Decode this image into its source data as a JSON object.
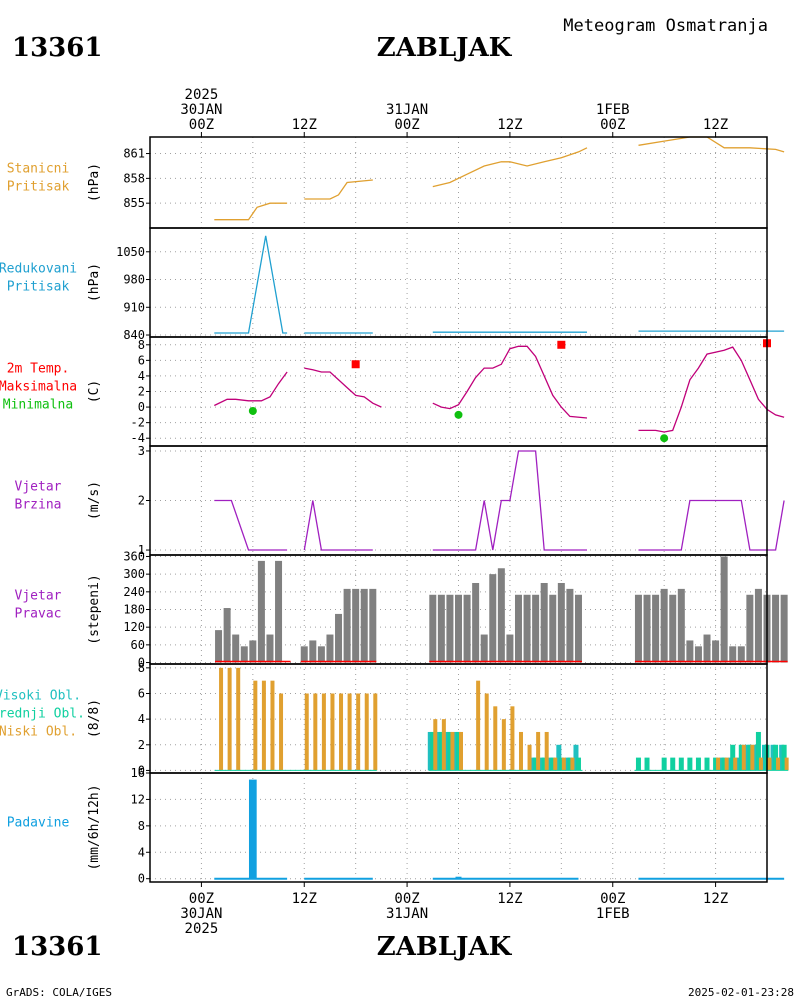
{
  "header": {
    "station_id": "13361",
    "station_name": "ZABLJAK",
    "doc_title": "Meteogram Osmatranja"
  },
  "footer": {
    "station_id": "13361",
    "station_name": "ZABLJAK",
    "credit": "GrADS: COLA/IGES",
    "timestamp": "2025-02-01-23:28"
  },
  "time_axis": {
    "hours_range": [
      -6,
      66
    ],
    "top_labels": [
      {
        "hour": 0,
        "lines": [
          "2025",
          "30JAN",
          "00Z"
        ]
      },
      {
        "hour": 12,
        "lines": [
          "12Z"
        ]
      },
      {
        "hour": 24,
        "lines": [
          "31JAN",
          "00Z"
        ]
      },
      {
        "hour": 36,
        "lines": [
          "12Z"
        ]
      },
      {
        "hour": 48,
        "lines": [
          "1FEB",
          "00Z"
        ]
      },
      {
        "hour": 60,
        "lines": [
          "12Z"
        ]
      }
    ],
    "bottom_labels": [
      {
        "hour": 0,
        "lines": [
          "00Z",
          "30JAN",
          "2025"
        ]
      },
      {
        "hour": 12,
        "lines": [
          "12Z"
        ]
      },
      {
        "hour": 24,
        "lines": [
          "00Z",
          "31JAN"
        ]
      },
      {
        "hour": 36,
        "lines": [
          "12Z"
        ]
      },
      {
        "hour": 48,
        "lines": [
          "00Z",
          "1FEB"
        ]
      },
      {
        "hour": 60,
        "lines": [
          "12Z"
        ]
      }
    ]
  },
  "colors": {
    "pressure": "#e0a030",
    "reduced": "#20a0d0",
    "temp": "#c0007a",
    "tmax": "#ff0000",
    "tmin": "#10c010",
    "wind": "#a020c0",
    "wdir_bar": "#808080",
    "wdir_base": "#ff0000",
    "cloud_high": "#20c0c0",
    "cloud_mid": "#10d0a0",
    "cloud_low": "#e0a030",
    "precip": "#10a0e0",
    "grid": "#a0a0a0"
  },
  "chart_data": [
    {
      "type": "line",
      "panel": "pressure",
      "labels": [
        "Stanicni",
        "Pritisak"
      ],
      "ylabel": "(hPa)",
      "ylim": [
        852,
        863
      ],
      "yticks": [
        855,
        858,
        861
      ],
      "series": [
        {
          "segments": [
            [
              [
                1.5,
                853
              ],
              [
                5.5,
                853
              ],
              [
                6.5,
                854.5
              ],
              [
                8,
                855
              ],
              [
                10,
                855
              ]
            ],
            [
              [
                12,
                855.5
              ],
              [
                15,
                855.5
              ],
              [
                16,
                856
              ],
              [
                17,
                857.5
              ],
              [
                20,
                857.8
              ]
            ],
            [
              [
                27,
                857
              ],
              [
                29,
                857.5
              ],
              [
                31,
                858.5
              ],
              [
                33,
                859.5
              ],
              [
                35,
                860
              ],
              [
                36,
                860
              ],
              [
                38,
                859.5
              ],
              [
                40,
                860
              ],
              [
                42,
                860.5
              ],
              [
                44,
                861.2
              ],
              [
                45,
                861.7
              ]
            ],
            [
              [
                51,
                862
              ],
              [
                54,
                862.5
              ],
              [
                57,
                863
              ],
              [
                59,
                863
              ],
              [
                61,
                861.7
              ],
              [
                64,
                861.7
              ],
              [
                67,
                861.5
              ],
              [
                68,
                861.2
              ]
            ]
          ]
        }
      ]
    },
    {
      "type": "line",
      "panel": "reduced_pressure",
      "labels": [
        "Redukovani",
        "Pritisak"
      ],
      "ylabel": "(hPa)",
      "ylim": [
        835,
        1110
      ],
      "yticks": [
        840,
        910,
        980,
        1050
      ],
      "series": [
        {
          "segments": [
            [
              [
                1.5,
                845
              ],
              [
                5.5,
                845
              ],
              [
                7.5,
                1090
              ],
              [
                9.5,
                845
              ],
              [
                10,
                845
              ]
            ],
            [
              [
                12,
                845
              ],
              [
                20,
                845
              ]
            ],
            [
              [
                27,
                847
              ],
              [
                45,
                847
              ]
            ],
            [
              [
                51,
                850
              ],
              [
                68,
                850
              ]
            ]
          ]
        }
      ]
    },
    {
      "type": "line",
      "panel": "temperature",
      "labels": [
        "2m Temp.",
        "Maksimalna",
        "Minimalna"
      ],
      "ylabel": "(C)",
      "ylim": [
        -5,
        9
      ],
      "yticks": [
        -4,
        -2,
        0,
        2,
        4,
        6,
        8
      ],
      "series": [
        {
          "name": "2m Temp.",
          "segments": [
            [
              [
                1.5,
                0.2
              ],
              [
                3,
                1
              ],
              [
                4,
                1
              ],
              [
                5.5,
                0.8
              ],
              [
                7,
                0.8
              ],
              [
                8,
                1.3
              ],
              [
                9,
                3
              ],
              [
                10,
                4.5
              ]
            ],
            [
              [
                12,
                5
              ],
              [
                13,
                4.8
              ],
              [
                14,
                4.5
              ],
              [
                15,
                4.5
              ],
              [
                17,
                2.5
              ],
              [
                18,
                1.5
              ],
              [
                19,
                1.3
              ],
              [
                20,
                0.5
              ],
              [
                21,
                0
              ]
            ],
            [
              [
                27,
                0.5
              ],
              [
                28,
                0
              ],
              [
                29,
                -0.2
              ],
              [
                30,
                0.3
              ],
              [
                31,
                2
              ],
              [
                32,
                3.8
              ],
              [
                33,
                5
              ],
              [
                34,
                5
              ],
              [
                35,
                5.5
              ],
              [
                36,
                7.5
              ],
              [
                37,
                7.8
              ],
              [
                38,
                7.8
              ],
              [
                39,
                6.5
              ],
              [
                40,
                4
              ],
              [
                41,
                1.5
              ],
              [
                42,
                0
              ],
              [
                43,
                -1.2
              ],
              [
                45,
                -1.4
              ]
            ],
            [
              [
                51,
                -3
              ],
              [
                53,
                -3
              ],
              [
                54,
                -3.2
              ],
              [
                55,
                -3
              ],
              [
                56,
                0
              ],
              [
                57,
                3.5
              ],
              [
                58,
                5
              ],
              [
                59,
                6.8
              ],
              [
                61,
                7.3
              ],
              [
                62,
                7.7
              ],
              [
                63,
                6
              ],
              [
                64,
                3.5
              ],
              [
                65,
                1
              ],
              [
                66,
                -0.3
              ],
              [
                67,
                -1
              ],
              [
                68,
                -1.3
              ]
            ]
          ]
        }
      ],
      "max_points": [
        [
          18,
          5.5
        ],
        [
          42,
          8
        ],
        [
          66,
          8.2
        ]
      ],
      "min_points": [
        [
          6,
          -0.5
        ],
        [
          30,
          -1
        ],
        [
          54,
          -4
        ]
      ]
    },
    {
      "type": "line",
      "panel": "wind_speed",
      "labels": [
        "Vjetar",
        "Brzina"
      ],
      "ylabel": "(m/s)",
      "ylim": [
        0.9,
        3.1
      ],
      "yticks": [
        1,
        2,
        3
      ],
      "series": [
        {
          "segments": [
            [
              [
                1.5,
                2
              ],
              [
                3.5,
                2
              ],
              [
                5.5,
                1
              ],
              [
                10,
                1
              ]
            ],
            [
              [
                12,
                1
              ],
              [
                13,
                2
              ],
              [
                14,
                1
              ],
              [
                20,
                1
              ]
            ],
            [
              [
                27,
                1
              ],
              [
                32,
                1
              ],
              [
                33,
                2
              ],
              [
                34,
                1
              ],
              [
                35,
                2
              ],
              [
                36,
                2
              ],
              [
                37,
                3
              ],
              [
                39,
                3
              ],
              [
                40,
                1
              ],
              [
                45,
                1
              ]
            ],
            [
              [
                51,
                1
              ],
              [
                56,
                1
              ],
              [
                57,
                2
              ],
              [
                63,
                2
              ],
              [
                64,
                1
              ],
              [
                67,
                1
              ],
              [
                68,
                2
              ]
            ]
          ]
        }
      ]
    },
    {
      "type": "bar",
      "panel": "wind_direction",
      "labels": [
        "Vjetar",
        "Pravac"
      ],
      "ylabel": "(stepeni)",
      "ylim": [
        -5,
        365
      ],
      "yticks": [
        0,
        60,
        120,
        180,
        240,
        300,
        360
      ],
      "x": [
        2,
        3,
        4,
        5,
        6,
        7,
        8,
        9,
        12,
        13,
        14,
        15,
        16,
        17,
        18,
        19,
        20,
        27,
        28,
        29,
        30,
        31,
        32,
        33,
        34,
        35,
        36,
        37,
        38,
        39,
        40,
        41,
        42,
        43,
        44,
        51,
        52,
        53,
        54,
        55,
        56,
        57,
        58,
        59,
        60,
        61,
        62,
        63,
        64,
        65,
        66,
        67,
        68
      ],
      "values": [
        110,
        185,
        95,
        55,
        75,
        345,
        95,
        345,
        55,
        75,
        55,
        95,
        165,
        250,
        250,
        250,
        250,
        230,
        230,
        230,
        230,
        230,
        270,
        95,
        300,
        320,
        95,
        230,
        230,
        230,
        270,
        230,
        270,
        250,
        230,
        230,
        230,
        230,
        250,
        230,
        250,
        75,
        55,
        95,
        75,
        360,
        55,
        55,
        230,
        250,
        230,
        230,
        230
      ],
      "base_segments": [
        [
          2,
          10
        ],
        [
          12,
          20
        ],
        [
          27,
          44
        ],
        [
          51,
          68
        ]
      ]
    },
    {
      "type": "bar",
      "panel": "clouds",
      "labels": [
        "Visoki Obl.",
        "Srednji Obl.",
        "Niski Obl."
      ],
      "ylabel": "(8/8)",
      "ylim": [
        -0.2,
        8.3
      ],
      "yticks": [
        0,
        2,
        4,
        6,
        8
      ],
      "x": [
        2,
        3,
        4,
        5,
        6,
        7,
        8,
        9,
        12,
        13,
        14,
        15,
        16,
        17,
        18,
        19,
        20,
        27,
        28,
        29,
        30,
        31,
        32,
        33,
        34,
        35,
        36,
        37,
        38,
        39,
        40,
        41,
        42,
        43,
        44,
        51,
        52,
        53,
        54,
        55,
        56,
        57,
        58,
        59,
        60,
        61,
        62,
        63,
        64,
        65,
        66,
        67,
        68
      ],
      "series": [
        {
          "name": "Visoki Obl.",
          "values": [
            0,
            0,
            0,
            0,
            0,
            0,
            0,
            0,
            0,
            0,
            0,
            0,
            0,
            0,
            0,
            0,
            0,
            3,
            3,
            3,
            3,
            0,
            0,
            0,
            0,
            0,
            0,
            0,
            0,
            1,
            1,
            1,
            2,
            1,
            2,
            0,
            0,
            0,
            0,
            0,
            0,
            0,
            0,
            0,
            0,
            1,
            1,
            1,
            2,
            2,
            2,
            2,
            2
          ]
        },
        {
          "name": "Srednji Obl.",
          "values": [
            0,
            0,
            0,
            0,
            0,
            0,
            0,
            0,
            0,
            0,
            0,
            0,
            0,
            0,
            0,
            0,
            0,
            3,
            3,
            3,
            3,
            0,
            0,
            0,
            0,
            0,
            0,
            0,
            0,
            1,
            1,
            1,
            1,
            1,
            1,
            1,
            1,
            0,
            1,
            1,
            1,
            1,
            1,
            1,
            1,
            1,
            2,
            2,
            2,
            3,
            2,
            2,
            2
          ]
        },
        {
          "name": "Niski Obl.",
          "values": [
            8,
            8,
            8,
            0,
            7,
            7,
            7,
            6,
            6,
            6,
            6,
            6,
            6,
            6,
            6,
            6,
            6,
            4,
            4,
            3,
            3,
            0,
            7,
            6,
            5,
            4,
            5,
            3,
            2,
            3,
            3,
            1,
            1,
            1,
            0,
            0,
            0,
            0,
            0,
            0,
            0,
            0,
            0,
            0,
            1,
            1,
            1,
            2,
            2,
            1,
            1,
            1,
            1
          ]
        }
      ]
    },
    {
      "type": "bar",
      "panel": "precipitation",
      "labels": [
        "Padavine"
      ],
      "ylabel": "(mm/6h/12h)",
      "ylim": [
        -0.5,
        16
      ],
      "yticks": [
        0,
        4,
        8,
        12,
        16
      ],
      "bars": [
        {
          "x": 6,
          "value": 15,
          "width_h": 0.9
        },
        {
          "x": 30,
          "value": 0.3,
          "width_h": 0.7
        }
      ],
      "baseline_segments": [
        [
          1.5,
          10
        ],
        [
          12,
          20
        ],
        [
          27,
          44
        ],
        [
          51,
          68
        ]
      ]
    }
  ]
}
